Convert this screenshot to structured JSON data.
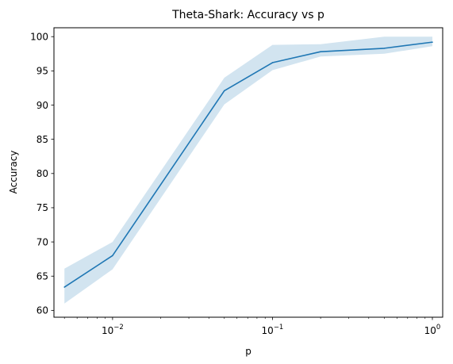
{
  "chart_data": {
    "type": "line",
    "title": "Theta-Shark: Accuracy vs p",
    "xlabel": "p",
    "ylabel": "Accuracy",
    "xscale": "log",
    "xlim": [
      0.0043,
      1.16
    ],
    "ylim": [
      59.0,
      101.3
    ],
    "grid": false,
    "colors": {
      "line": "#1f77b4",
      "band": "#1f77b4"
    },
    "x_ticks": [
      {
        "value": 0.01,
        "base": "10",
        "exp": "−2"
      },
      {
        "value": 0.1,
        "base": "10",
        "exp": "−1"
      },
      {
        "value": 1,
        "base": "10",
        "exp": "0"
      }
    ],
    "y_ticks": [
      60,
      65,
      70,
      75,
      80,
      85,
      90,
      95,
      100
    ],
    "series": [
      {
        "x": [
          0.005,
          0.01,
          0.05,
          0.1,
          0.2,
          0.5,
          1.0
        ],
        "y": [
          63.4,
          68.0,
          92.1,
          96.2,
          97.8,
          98.3,
          99.2
        ],
        "band_upper": [
          66.1,
          70.0,
          94.0,
          98.8,
          98.9,
          100.0,
          100.0
        ],
        "band_lower": [
          61.0,
          66.0,
          90.1,
          95.1,
          97.1,
          97.5,
          98.6
        ]
      }
    ]
  }
}
